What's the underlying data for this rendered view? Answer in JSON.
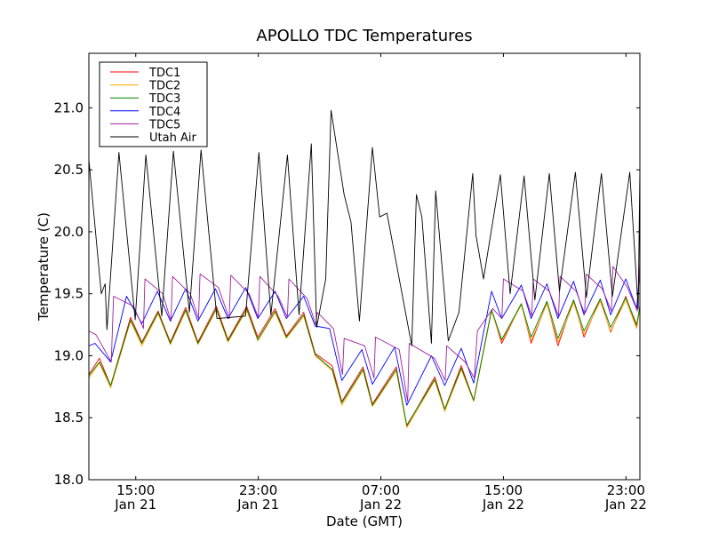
{
  "chart_data": {
    "type": "line",
    "title": "APOLLO TDC Temperatures",
    "xlabel": "Date (GMT)",
    "ylabel": "Temperature (C)",
    "x_units": "hours since Jan 21 00:00 GMT",
    "xlim": [
      11.94,
      47.91
    ],
    "ylim": [
      18.0,
      21.44
    ],
    "grid": false,
    "legend_position": "top-left",
    "xticks": [
      {
        "value": 15,
        "line1": "15:00",
        "line2": "Jan 21"
      },
      {
        "value": 23,
        "line1": "23:00",
        "line2": "Jan 21"
      },
      {
        "value": 31,
        "line1": "07:00",
        "line2": "Jan 22"
      },
      {
        "value": 39,
        "line1": "15:00",
        "line2": "Jan 22"
      },
      {
        "value": 47,
        "line1": "23:00",
        "line2": "Jan 22"
      }
    ],
    "yticks": [
      {
        "value": 18.0,
        "label": "18.0"
      },
      {
        "value": 18.5,
        "label": "18.5"
      },
      {
        "value": 19.0,
        "label": "19.0"
      },
      {
        "value": 19.5,
        "label": "19.5"
      },
      {
        "value": 20.0,
        "label": "20.0"
      },
      {
        "value": 20.5,
        "label": "20.5"
      },
      {
        "value": 21.0,
        "label": "21.0"
      }
    ],
    "series": [
      {
        "name": "TDC1",
        "color": "#ff0000",
        "x": [
          11.94,
          12.63,
          13.36,
          14.66,
          15.4,
          16.46,
          17.26,
          18.26,
          19.06,
          20.26,
          21.02,
          22.24,
          22.97,
          24.1,
          24.83,
          25.96,
          26.71,
          27.82,
          28.45,
          29.84,
          30.45,
          32.01,
          32.69,
          34.52,
          35.17,
          36.25,
          37.06,
          38.23,
          38.89,
          40.17,
          40.81,
          41.84,
          42.56,
          43.58,
          44.26,
          45.32,
          46.0,
          46.99,
          47.7,
          47.91
        ],
        "y": [
          18.85,
          18.98,
          18.76,
          19.31,
          19.11,
          19.36,
          19.11,
          19.39,
          19.11,
          19.4,
          19.13,
          19.4,
          19.15,
          19.38,
          19.16,
          19.35,
          19.02,
          18.92,
          18.63,
          18.91,
          18.61,
          18.91,
          18.43,
          18.83,
          18.57,
          18.92,
          18.64,
          19.37,
          19.1,
          19.42,
          19.1,
          19.43,
          19.08,
          19.45,
          19.15,
          19.46,
          19.19,
          19.48,
          19.23,
          19.4
        ]
      },
      {
        "name": "TDC2",
        "color": "#ffa500",
        "x": [
          11.94,
          12.63,
          13.36,
          14.66,
          15.4,
          16.46,
          17.26,
          18.26,
          19.06,
          20.26,
          21.02,
          22.24,
          22.97,
          24.1,
          24.83,
          25.96,
          26.71,
          27.82,
          28.45,
          29.84,
          30.45,
          32.01,
          32.69,
          34.52,
          35.17,
          36.25,
          37.06,
          38.23,
          38.89,
          40.17,
          40.81,
          41.84,
          42.56,
          43.58,
          44.26,
          45.32,
          46.0,
          46.99,
          47.7,
          47.91
        ],
        "y": [
          18.82,
          18.94,
          18.74,
          19.28,
          19.08,
          19.34,
          19.09,
          19.36,
          19.09,
          19.37,
          19.11,
          19.37,
          19.12,
          19.35,
          19.14,
          19.32,
          19.0,
          18.88,
          18.6,
          18.88,
          18.59,
          18.88,
          18.42,
          18.8,
          18.55,
          18.89,
          18.63,
          19.36,
          19.12,
          19.41,
          19.12,
          19.42,
          19.11,
          19.43,
          19.17,
          19.44,
          19.2,
          19.45,
          19.22,
          19.38
        ]
      },
      {
        "name": "TDC3",
        "color": "#008000",
        "x": [
          11.94,
          12.63,
          13.36,
          14.66,
          15.4,
          16.46,
          17.26,
          18.26,
          19.06,
          20.26,
          21.02,
          22.24,
          22.97,
          24.1,
          24.83,
          25.96,
          26.71,
          27.82,
          28.45,
          29.84,
          30.45,
          32.01,
          32.69,
          34.52,
          35.17,
          36.25,
          37.06,
          38.23,
          38.89,
          40.17,
          40.81,
          41.84,
          42.56,
          43.58,
          44.26,
          45.32,
          46.0,
          46.99,
          47.7,
          47.91
        ],
        "y": [
          18.84,
          18.95,
          18.76,
          19.29,
          19.1,
          19.35,
          19.1,
          19.37,
          19.1,
          19.38,
          19.12,
          19.38,
          19.13,
          19.36,
          19.15,
          19.33,
          19.01,
          18.89,
          18.62,
          18.89,
          18.6,
          18.89,
          18.44,
          18.81,
          18.57,
          18.9,
          18.64,
          19.37,
          19.13,
          19.42,
          19.15,
          19.44,
          19.14,
          19.45,
          19.2,
          19.46,
          19.23,
          19.47,
          19.25,
          19.4
        ]
      },
      {
        "name": "TDC4",
        "color": "#0000ff",
        "x": [
          11.94,
          12.34,
          13.36,
          14.4,
          15.4,
          16.41,
          17.26,
          18.26,
          19.06,
          20.2,
          21.02,
          22.18,
          22.97,
          24.1,
          24.83,
          25.96,
          26.71,
          27.65,
          28.45,
          29.76,
          30.45,
          31.9,
          32.69,
          34.3,
          35.17,
          36.25,
          37.06,
          38.23,
          38.89,
          40.17,
          40.81,
          41.84,
          42.56,
          43.58,
          44.26,
          45.32,
          46.0,
          46.99,
          47.7,
          47.91
        ],
        "y": [
          19.08,
          19.1,
          18.95,
          19.48,
          19.26,
          19.52,
          19.28,
          19.54,
          19.28,
          19.54,
          19.3,
          19.55,
          19.3,
          19.52,
          19.3,
          19.48,
          19.24,
          19.22,
          18.8,
          19.05,
          18.77,
          19.07,
          18.6,
          19.0,
          18.76,
          19.06,
          18.78,
          19.52,
          19.3,
          19.57,
          19.3,
          19.58,
          19.3,
          19.6,
          19.33,
          19.61,
          19.33,
          19.62,
          19.38,
          19.7
        ]
      },
      {
        "name": "TDC5",
        "color": "#a020a0",
        "x": [
          11.94,
          12.4,
          13.4,
          13.55,
          14.85,
          15.5,
          15.6,
          16.76,
          17.3,
          17.4,
          18.56,
          19.1,
          19.2,
          20.4,
          21.1,
          21.2,
          22.4,
          23.0,
          23.1,
          24.3,
          24.9,
          25.0,
          26.2,
          26.75,
          26.85,
          27.9,
          28.5,
          28.6,
          29.95,
          30.55,
          30.65,
          32.2,
          32.75,
          32.85,
          34.5,
          35.2,
          35.3,
          36.5,
          37.1,
          37.3,
          38.3,
          38.9,
          39.0,
          40.3,
          40.85,
          40.95,
          42.0,
          42.6,
          42.7,
          43.75,
          44.3,
          44.4,
          45.45,
          46.05,
          46.15,
          47.1,
          47.75,
          47.91
        ],
        "y": [
          19.2,
          19.17,
          18.95,
          19.48,
          19.4,
          19.22,
          19.62,
          19.5,
          19.28,
          19.64,
          19.5,
          19.3,
          19.66,
          19.55,
          19.3,
          19.65,
          19.5,
          19.31,
          19.64,
          19.48,
          19.31,
          19.62,
          19.46,
          19.25,
          19.35,
          19.22,
          18.85,
          19.14,
          19.08,
          18.82,
          19.15,
          19.05,
          18.63,
          19.1,
          18.98,
          18.8,
          19.08,
          18.95,
          18.82,
          19.2,
          19.38,
          19.3,
          19.62,
          19.52,
          19.32,
          19.62,
          19.52,
          19.32,
          19.64,
          19.52,
          19.34,
          19.66,
          19.54,
          19.36,
          19.72,
          19.55,
          19.36,
          19.76
        ]
      },
      {
        "name": "Utah Air",
        "color": "#000000",
        "x": [
          11.94,
          12.3,
          12.66,
          12.75,
          13.0,
          13.12,
          13.9,
          14.96,
          15.66,
          16.7,
          17.46,
          18.5,
          19.26,
          20.3,
          22.17,
          23.04,
          23.82,
          24.9,
          25.66,
          26.46,
          26.81,
          27.4,
          27.75,
          28.6,
          29.05,
          29.6,
          30.45,
          30.92,
          31.4,
          33.02,
          33.32,
          33.68,
          34.3,
          34.58,
          35.4,
          36.1,
          37.0,
          37.21,
          37.7,
          38.8,
          39.44,
          40.35,
          41.05,
          42.0,
          42.66,
          43.7,
          44.42,
          45.4,
          46.12,
          47.25,
          47.8,
          47.91
        ],
        "y": [
          20.58,
          20.1,
          19.62,
          19.5,
          19.58,
          19.21,
          20.64,
          19.29,
          20.62,
          19.32,
          20.65,
          19.35,
          20.66,
          19.3,
          19.32,
          20.64,
          19.33,
          20.62,
          19.33,
          20.71,
          19.23,
          19.62,
          20.98,
          20.3,
          20.08,
          19.28,
          20.68,
          20.12,
          20.15,
          19.08,
          20.3,
          20.12,
          19.1,
          20.33,
          19.12,
          19.35,
          20.47,
          19.97,
          19.62,
          20.46,
          19.5,
          20.45,
          19.45,
          20.47,
          19.52,
          20.48,
          19.47,
          20.47,
          19.48,
          20.48,
          19.38,
          20.5
        ]
      }
    ]
  }
}
